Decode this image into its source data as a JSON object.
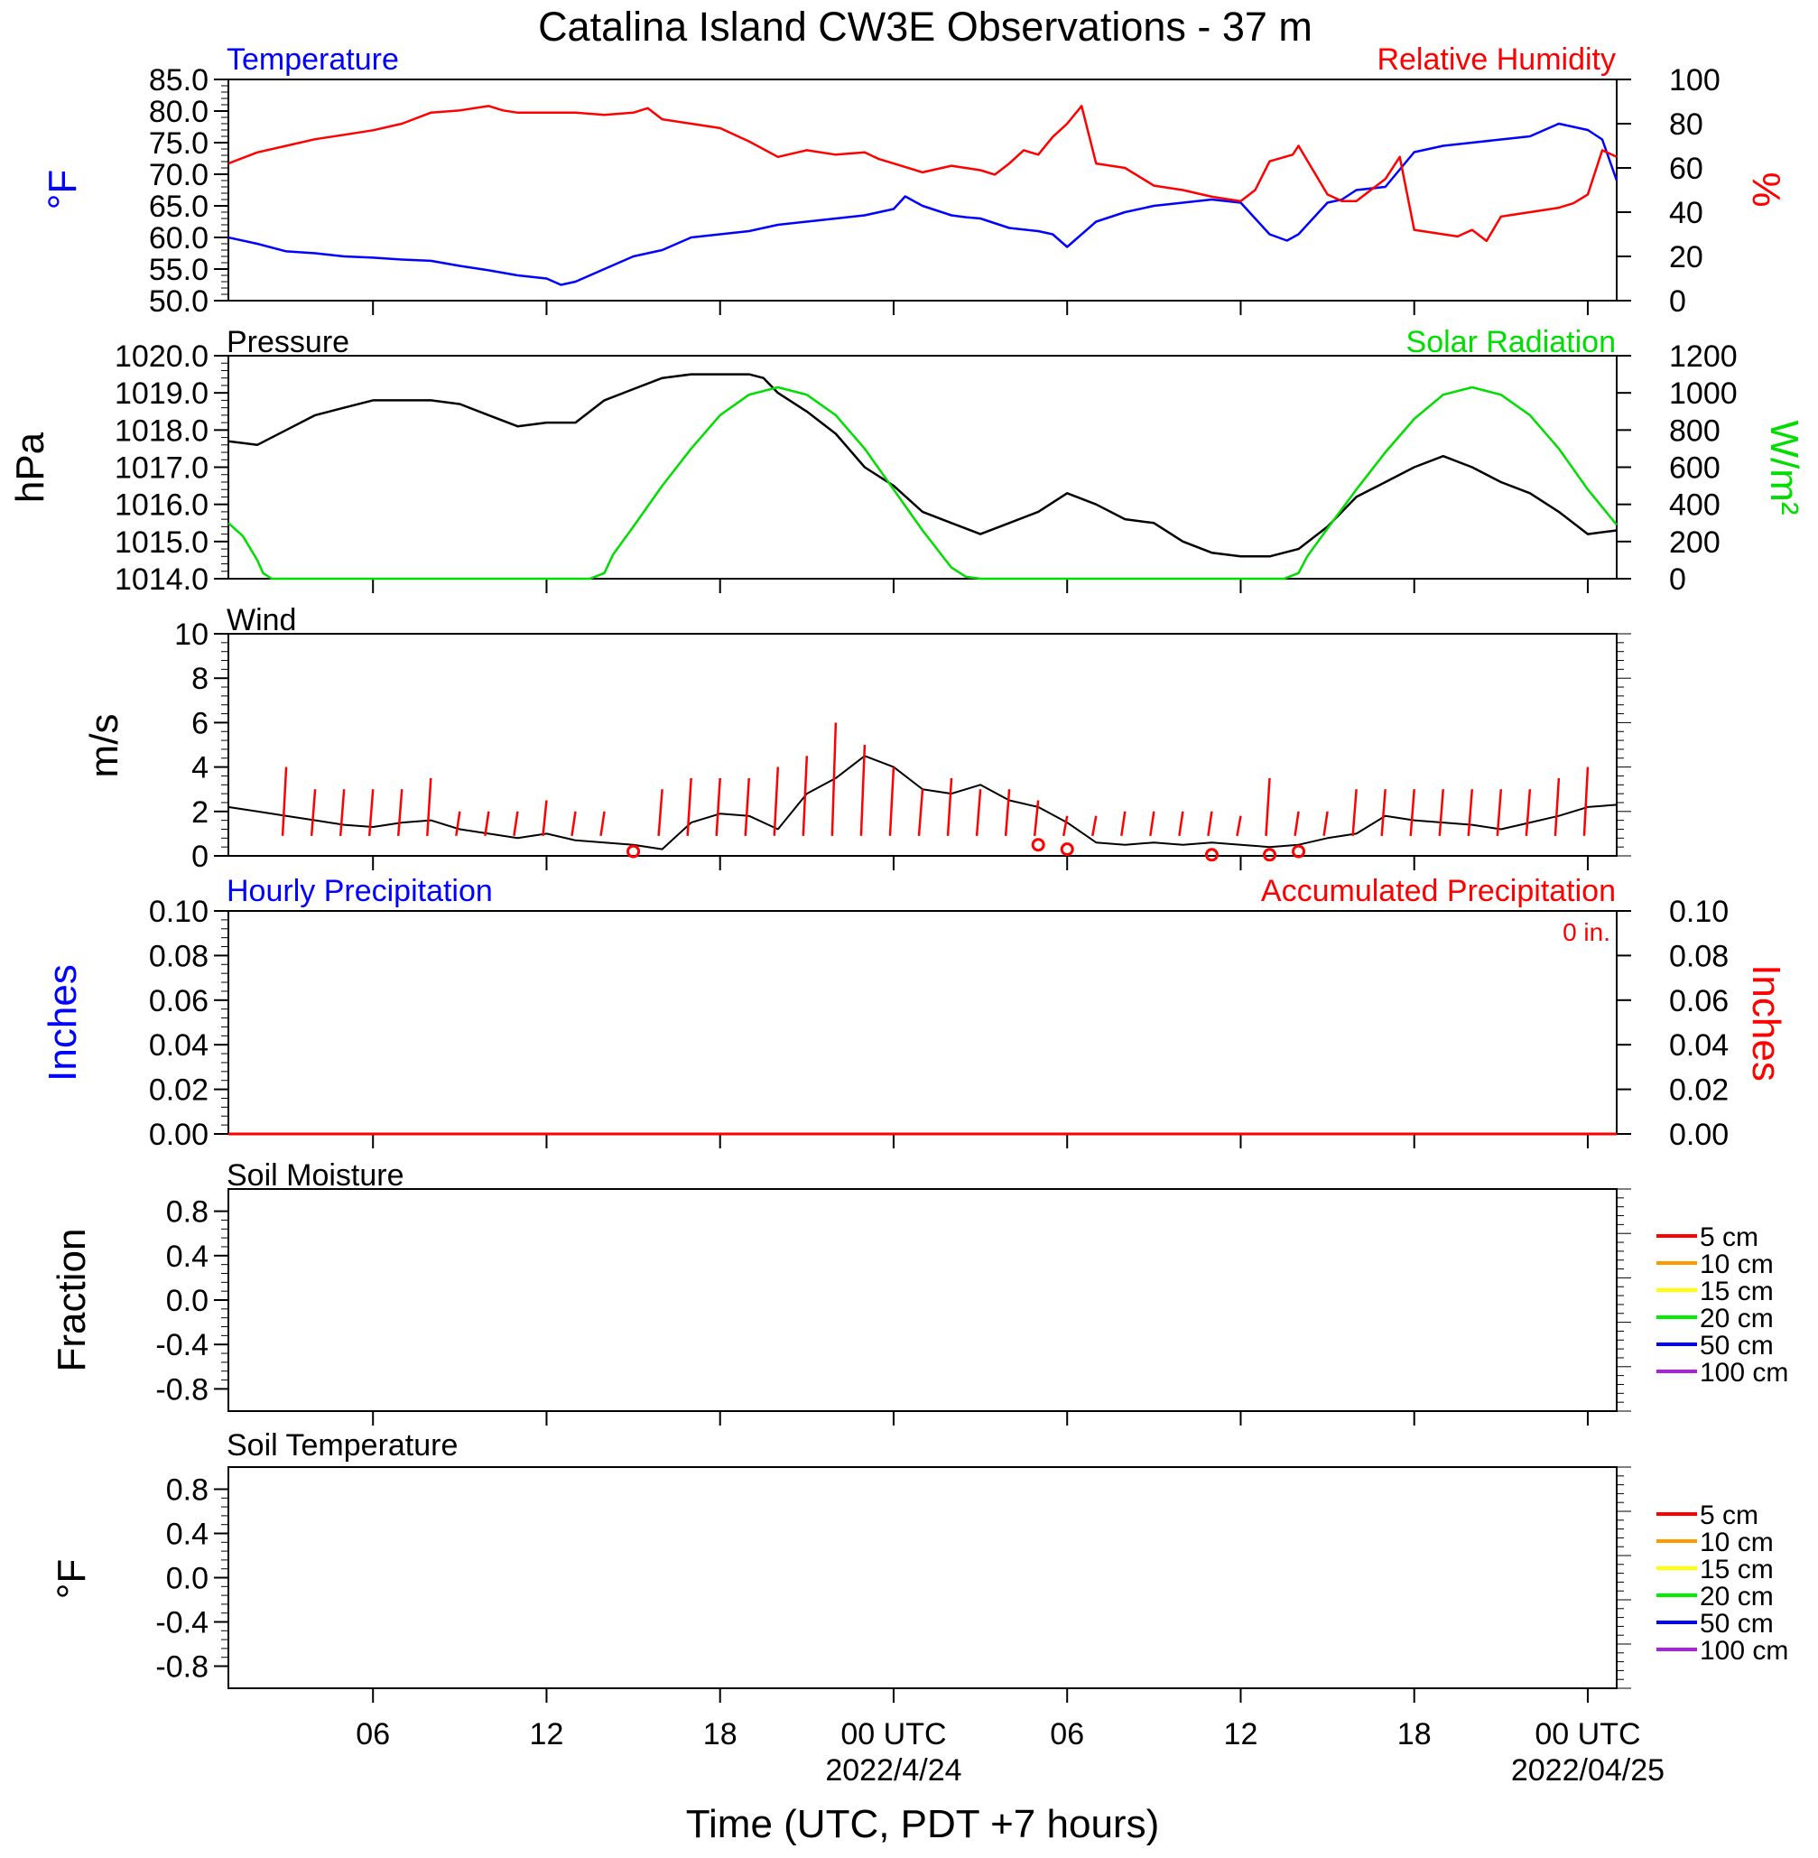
{
  "title": "Catalina Island CW3E Observations - 37 m",
  "x_axis": {
    "label": "Time (UTC, PDT +7 hours)",
    "start_hour": 0,
    "end_hour": 48,
    "tick_hours": [
      5,
      11,
      17,
      23,
      29,
      35,
      41,
      47
    ],
    "tick_labels": [
      "06",
      "12",
      "18",
      "00 UTC",
      "06",
      "12",
      "18",
      "00 UTC"
    ],
    "date_labels": [
      {
        "hour": 23,
        "text": "2022/4/24"
      },
      {
        "hour": 47,
        "text": "2022/04/25"
      }
    ]
  },
  "colors": {
    "temperature": "#0000ff",
    "humidity": "#ff0000",
    "pressure": "#000000",
    "solar": "#00dd00",
    "wind": "#000000",
    "barb": "#ff0000",
    "precip": "#ff0000",
    "soil": [
      "#ff0000",
      "#ff9900",
      "#ffff00",
      "#00ee00",
      "#0000ff",
      "#aa22dd"
    ]
  },
  "panels": {
    "temp_rh": {
      "left_title": "Temperature",
      "right_title": "Relative Humidity",
      "left_unit": "°F",
      "right_unit": "%"
    },
    "pressure_solar": {
      "left_title": "Pressure",
      "right_title": "Solar Radiation",
      "left_unit": "hPa",
      "right_unit": "W/m²"
    },
    "wind": {
      "left_title": "Wind",
      "left_unit": "m/s"
    },
    "precip": {
      "left_title": "Hourly Precipitation",
      "right_title": "Accumulated Precipitation",
      "left_unit": "Inches",
      "right_unit": "Inches",
      "annotation": "0 in."
    },
    "soil_moisture": {
      "left_title": "Soil Moisture",
      "left_unit": "Fraction",
      "legend": [
        "5 cm",
        "10 cm",
        "15 cm",
        "20 cm",
        "50 cm",
        "100 cm"
      ]
    },
    "soil_temperature": {
      "left_title": "Soil Temperature",
      "left_unit": "°F",
      "legend": [
        "5 cm",
        "10 cm",
        "15 cm",
        "20 cm",
        "50 cm",
        "100 cm"
      ]
    }
  },
  "chart_data": [
    {
      "type": "line",
      "title": "Temperature / Relative Humidity",
      "x_units": "hours since 2022-04-23 01 UTC",
      "left_axis": {
        "label": "°F",
        "ylim": [
          50,
          85
        ],
        "ticks": [
          50.0,
          55.0,
          60.0,
          65.0,
          70.0,
          75.0,
          80.0,
          85.0
        ],
        "tick_labels": [
          "50.0",
          "55.0",
          "60.0",
          "65.0",
          "70.0",
          "75.0",
          "80.0",
          "85.0"
        ]
      },
      "right_axis": {
        "label": "%",
        "ylim": [
          0,
          100
        ],
        "ticks": [
          0,
          20,
          40,
          60,
          80,
          100
        ],
        "tick_labels": [
          "0",
          "20",
          "40",
          "60",
          "80",
          "100"
        ]
      },
      "series": [
        {
          "name": "Temperature",
          "axis": "left",
          "x": [
            0,
            1,
            2,
            3,
            4,
            5,
            6,
            7,
            8,
            9,
            10,
            11,
            11.5,
            12,
            13,
            14,
            15,
            16,
            17,
            18,
            19,
            20,
            21,
            22,
            22.5,
            23,
            23.4,
            24,
            25,
            25.5,
            26,
            27,
            28,
            28.5,
            29,
            30,
            31,
            32,
            33,
            34,
            35,
            35.5,
            36,
            36.6,
            37,
            38,
            38.5,
            39,
            40,
            41,
            42,
            43,
            44,
            45,
            46,
            47,
            47.5,
            48
          ],
          "y": [
            60,
            59,
            57.8,
            57.5,
            57,
            56.8,
            56.5,
            56.3,
            55.5,
            54.8,
            54,
            53.5,
            52.5,
            53,
            55,
            57,
            58,
            60,
            60.5,
            61,
            62,
            62.5,
            63,
            63.5,
            64,
            64.5,
            66.5,
            65,
            63.5,
            63.2,
            63,
            61.5,
            61,
            60.5,
            58.5,
            62.5,
            64,
            65,
            65.5,
            66,
            65.5,
            63,
            60.5,
            59.5,
            60.5,
            65.5,
            66,
            67.5,
            68,
            73.5,
            74.5,
            75,
            75.5,
            76,
            78,
            77,
            75.5,
            69
          ]
        },
        {
          "name": "Relative Humidity",
          "axis": "right",
          "x": [
            0,
            1,
            2,
            3,
            4,
            5,
            6,
            7,
            8,
            9,
            9.5,
            10,
            11,
            12,
            13,
            14,
            14.5,
            15,
            16,
            17,
            18,
            19,
            20,
            21,
            22,
            22.5,
            23,
            24,
            25,
            26,
            26.5,
            27,
            27.5,
            28,
            28.5,
            29,
            29.5,
            30,
            31,
            32,
            33,
            34,
            35,
            35.5,
            36,
            36.8,
            37,
            38,
            38.5,
            39,
            39.5,
            40,
            40.5,
            41,
            42,
            42.5,
            43,
            43.5,
            44,
            45,
            46,
            46.5,
            47,
            47.5,
            48
          ],
          "y": [
            62,
            67,
            70,
            73,
            75,
            77,
            80,
            85,
            86,
            88,
            86,
            85,
            85,
            85,
            84,
            85,
            87,
            82,
            80,
            78,
            72,
            65,
            68,
            66,
            67,
            64,
            62,
            58,
            61,
            59,
            57,
            62,
            68,
            66,
            74,
            80,
            88,
            62,
            60,
            52,
            50,
            47,
            45,
            50,
            63,
            66,
            70,
            48,
            45,
            45,
            50,
            55,
            65,
            32,
            30,
            29,
            32,
            27,
            38,
            40,
            42,
            44,
            48,
            68,
            65
          ]
        }
      ]
    },
    {
      "type": "line",
      "title": "Pressure / Solar Radiation",
      "x_units": "hours since 2022-04-23 01 UTC",
      "left_axis": {
        "label": "hPa",
        "ylim": [
          1014,
          1020
        ],
        "ticks": [
          1014,
          1015,
          1016,
          1017,
          1018,
          1019,
          1020
        ],
        "tick_labels": [
          "1014.0",
          "1015.0",
          "1016.0",
          "1017.0",
          "1018.0",
          "1019.0",
          "1020.0"
        ]
      },
      "right_axis": {
        "label": "W/m²",
        "ylim": [
          0,
          1200
        ],
        "ticks": [
          0,
          200,
          400,
          600,
          800,
          1000,
          1200
        ],
        "tick_labels": [
          "0",
          "200",
          "400",
          "600",
          "800",
          "1000",
          "1200"
        ]
      },
      "series": [
        {
          "name": "Pressure",
          "axis": "left",
          "x": [
            0,
            1,
            2,
            3,
            4,
            5,
            6,
            7,
            8,
            9,
            10,
            11,
            12,
            13,
            14,
            15,
            16,
            17,
            18,
            18.5,
            19,
            20,
            21,
            22,
            23,
            24,
            25,
            26,
            27,
            28,
            29,
            30,
            31,
            32,
            33,
            34,
            35,
            36,
            37,
            38,
            39,
            40,
            41,
            42,
            43,
            44,
            45,
            46,
            47,
            48
          ],
          "y": [
            1017.7,
            1017.6,
            1018.0,
            1018.4,
            1018.6,
            1018.8,
            1018.8,
            1018.8,
            1018.7,
            1018.4,
            1018.1,
            1018.2,
            1018.2,
            1018.8,
            1019.1,
            1019.4,
            1019.5,
            1019.5,
            1019.5,
            1019.4,
            1019.0,
            1018.5,
            1017.9,
            1017.0,
            1016.5,
            1015.8,
            1015.5,
            1015.2,
            1015.5,
            1015.8,
            1016.3,
            1016.0,
            1015.6,
            1015.5,
            1015.0,
            1014.7,
            1014.6,
            1014.6,
            1014.8,
            1015.4,
            1016.2,
            1016.6,
            1017.0,
            1017.3,
            1017.0,
            1016.6,
            1016.3,
            1015.8,
            1015.2,
            1015.3
          ]
        },
        {
          "name": "Solar Radiation",
          "axis": "right",
          "x": [
            0,
            0.5,
            1,
            1.2,
            1.5,
            12.5,
            13,
            13.3,
            14,
            15,
            16,
            17,
            18,
            19,
            20,
            21,
            22,
            23,
            24,
            25,
            25.5,
            26,
            36.5,
            37,
            37.3,
            38,
            39,
            40,
            41,
            42,
            43,
            44,
            45,
            46,
            47,
            48
          ],
          "y": [
            300,
            230,
            100,
            30,
            0,
            0,
            30,
            130,
            280,
            500,
            700,
            880,
            990,
            1030,
            990,
            880,
            700,
            480,
            260,
            60,
            10,
            0,
            0,
            30,
            120,
            270,
            480,
            680,
            860,
            990,
            1030,
            990,
            880,
            700,
            480,
            290
          ]
        }
      ]
    },
    {
      "type": "line",
      "title": "Wind",
      "x_units": "hours since 2022-04-23 01 UTC",
      "left_axis": {
        "label": "m/s",
        "ylim": [
          0,
          10
        ],
        "ticks": [
          0,
          2,
          4,
          6,
          8,
          10
        ],
        "tick_labels": [
          "0",
          "2",
          "4",
          "6",
          "8",
          "10"
        ]
      },
      "series": [
        {
          "name": "Wind speed",
          "x": [
            0,
            1,
            2,
            3,
            4,
            5,
            6,
            7,
            8,
            9,
            10,
            11,
            12,
            13,
            14,
            15,
            16,
            17,
            18,
            19,
            20,
            21,
            22,
            23,
            24,
            25,
            26,
            27,
            28,
            29,
            30,
            31,
            32,
            33,
            34,
            35,
            36,
            37,
            38,
            39,
            40,
            41,
            42,
            43,
            44,
            45,
            46,
            47,
            48
          ],
          "y": [
            2.2,
            2.0,
            1.8,
            1.6,
            1.4,
            1.3,
            1.5,
            1.6,
            1.2,
            1.0,
            0.8,
            1.0,
            0.7,
            0.6,
            0.5,
            0.3,
            1.5,
            1.9,
            1.8,
            1.2,
            2.8,
            3.5,
            4.5,
            4.0,
            3.0,
            2.8,
            3.2,
            2.5,
            2.2,
            1.5,
            0.6,
            0.5,
            0.6,
            0.5,
            0.6,
            0.5,
            0.4,
            0.5,
            0.8,
            1.0,
            1.8,
            1.6,
            1.5,
            1.4,
            1.2,
            1.5,
            1.8,
            2.2,
            2.3
          ]
        },
        {
          "name": "Barbs (red)",
          "x": [
            2,
            3,
            4,
            5,
            6,
            7,
            8,
            9,
            10,
            11,
            12,
            13,
            15,
            16,
            17,
            18,
            19,
            20,
            21,
            22,
            23,
            24,
            25,
            26,
            27,
            28,
            29,
            30,
            31,
            32,
            33,
            34,
            35,
            36,
            37,
            38,
            39,
            40,
            41,
            42,
            43,
            44,
            45,
            46,
            47
          ],
          "y": [
            4,
            3,
            3,
            3,
            3,
            3.5,
            2,
            2,
            2,
            2.5,
            2,
            2,
            3,
            3.5,
            3.5,
            3.5,
            4,
            4.5,
            6,
            5,
            4,
            3,
            3.5,
            3,
            3,
            2.5,
            1.8,
            1.8,
            2,
            2,
            2,
            2,
            1.8,
            3.5,
            2,
            2,
            3,
            3,
            3,
            3,
            3,
            3,
            3,
            3.5,
            4
          ]
        },
        {
          "name": "Calm (circles)",
          "x": [
            14,
            28,
            29,
            34,
            36,
            37
          ],
          "y": [
            0.2,
            0.5,
            0.3,
            0.05,
            0.05,
            0.2
          ]
        }
      ]
    },
    {
      "type": "line",
      "title": "Hourly Precipitation / Accumulated Precipitation",
      "left_axis": {
        "label": "Inches",
        "ylim": [
          0,
          0.1
        ],
        "ticks": [
          0,
          0.02,
          0.04,
          0.06,
          0.08,
          0.1
        ],
        "tick_labels": [
          "0.00",
          "0.02",
          "0.04",
          "0.06",
          "0.08",
          "0.10"
        ]
      },
      "right_axis": {
        "label": "Inches",
        "ylim": [
          0,
          0.1
        ],
        "ticks": [
          0,
          0.02,
          0.04,
          0.06,
          0.08,
          0.1
        ],
        "tick_labels": [
          "0.00",
          "0.02",
          "0.04",
          "0.06",
          "0.08",
          "0.10"
        ]
      },
      "series": [
        {
          "name": "Accumulated Precipitation",
          "x": [
            0,
            48
          ],
          "y": [
            0,
            0
          ]
        }
      ]
    },
    {
      "type": "line",
      "title": "Soil Moisture",
      "left_axis": {
        "label": "Fraction",
        "ylim": [
          -1,
          1
        ],
        "ticks": [
          -0.8,
          -0.4,
          0.0,
          0.4,
          0.8
        ],
        "tick_labels": [
          "-0.8",
          "-0.4",
          "0.0",
          "0.4",
          "0.8"
        ]
      },
      "legend": [
        "5 cm",
        "10 cm",
        "15 cm",
        "20 cm",
        "50 cm",
        "100 cm"
      ],
      "series": []
    },
    {
      "type": "line",
      "title": "Soil Temperature",
      "left_axis": {
        "label": "°F",
        "ylim": [
          -1,
          1
        ],
        "ticks": [
          -0.8,
          -0.4,
          0.0,
          0.4,
          0.8
        ],
        "tick_labels": [
          "-0.8",
          "-0.4",
          "0.0",
          "0.4",
          "0.8"
        ]
      },
      "legend": [
        "5 cm",
        "10 cm",
        "15 cm",
        "20 cm",
        "50 cm",
        "100 cm"
      ],
      "series": []
    }
  ]
}
